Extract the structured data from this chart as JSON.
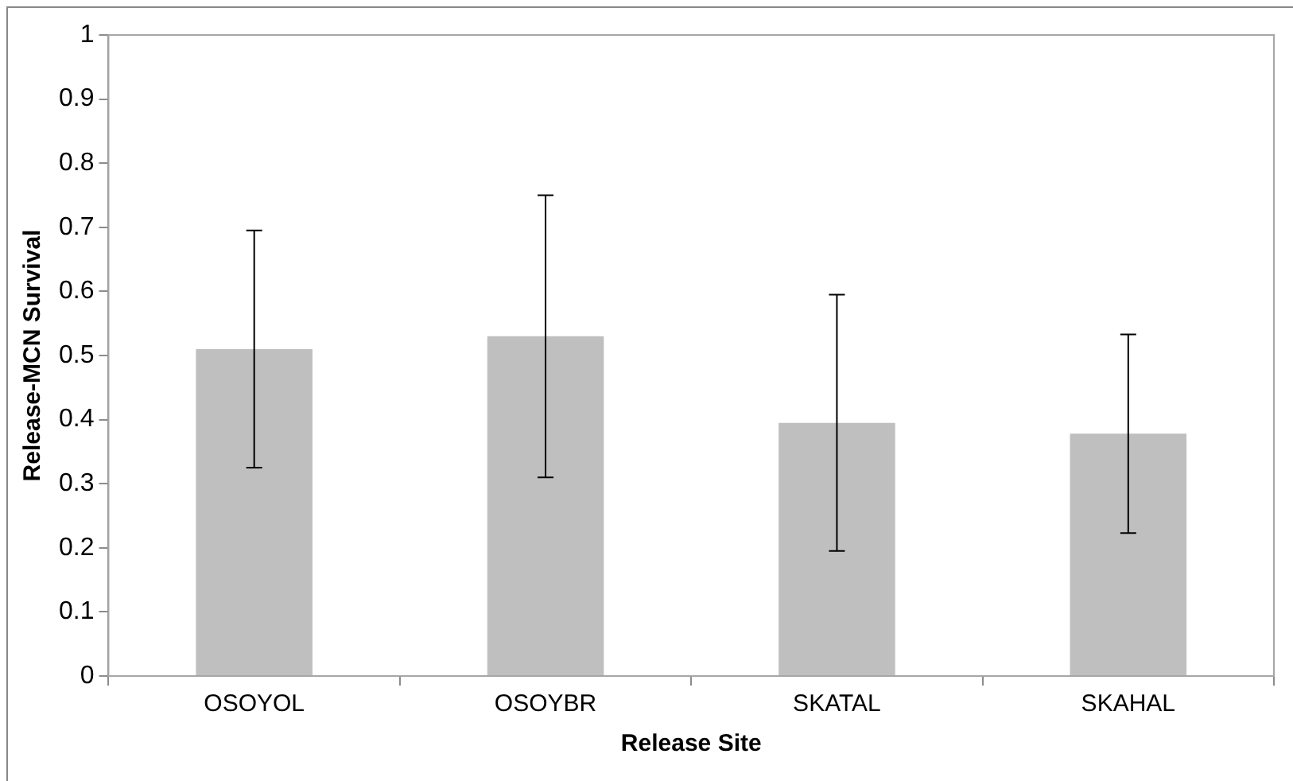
{
  "chart_data": {
    "type": "bar",
    "xlabel": "Release Site",
    "ylabel": "Release-MCN Survival",
    "categories": [
      "OSOYOL",
      "OSOYBR",
      "SKATAL",
      "SKAHAL"
    ],
    "values": [
      0.51,
      0.53,
      0.395,
      0.378
    ],
    "errors": [
      0.185,
      0.22,
      0.2,
      0.155
    ],
    "color": "#bfbfbf",
    "ylim": [
      0,
      1
    ],
    "yticks": [
      0,
      0.1,
      0.2,
      0.3,
      0.4,
      0.5,
      0.6,
      0.7,
      0.8,
      0.9,
      1
    ],
    "grid": false,
    "legend": false
  }
}
